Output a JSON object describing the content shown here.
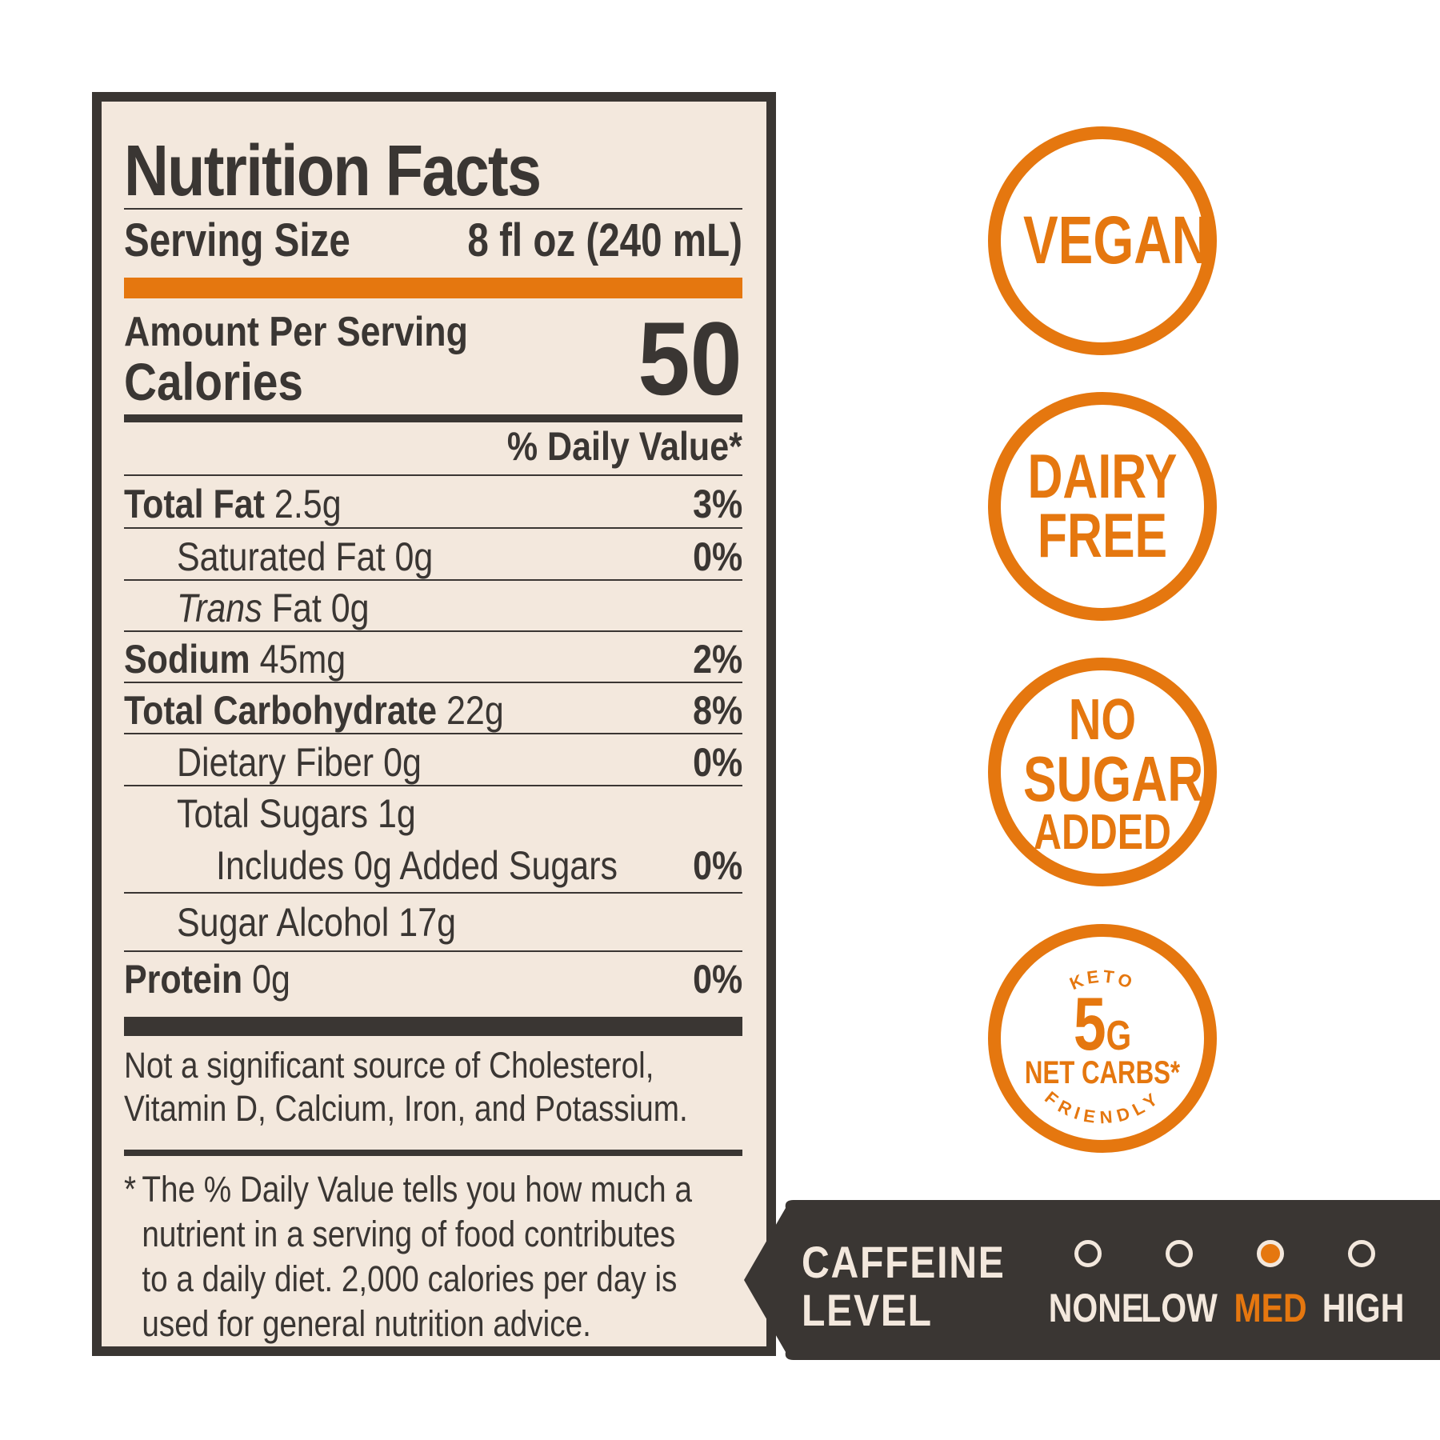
{
  "panel": {
    "title": "Nutrition Facts",
    "serving_size_label": "Serving Size",
    "serving_size_value": "8 fl oz (240 mL)",
    "amount_per_serving": "Amount Per Serving",
    "calories_label": "Calories",
    "calories_value": "50",
    "daily_value_header": "% Daily Value*",
    "rows": [
      {
        "name": "Total Fat",
        "amount": "2.5g",
        "dv": "3%"
      },
      {
        "name": "Saturated Fat",
        "amount": "0g",
        "dv": "0%"
      },
      {
        "name": "Trans",
        "amount": "Fat 0g",
        "dv": ""
      },
      {
        "name": "Sodium",
        "amount": "45mg",
        "dv": "2%"
      },
      {
        "name": "Total Carbohydrate",
        "amount": "22g",
        "dv": "8%"
      },
      {
        "name": "Dietary Fiber",
        "amount": "0g",
        "dv": "0%"
      },
      {
        "name": "Total Sugars",
        "amount": "1g",
        "dv": ""
      },
      {
        "name": "Includes 0g Added Sugars",
        "amount": "",
        "dv": "0%"
      },
      {
        "name": "Sugar Alcohol",
        "amount": "17g",
        "dv": ""
      },
      {
        "name": "Protein",
        "amount": "0g",
        "dv": "0%"
      }
    ],
    "note_line1": "Not a significant source of Cholesterol,",
    "note_line2": "Vitamin D, Calcium, Iron, and Potassium.",
    "footnote_star": "*",
    "footnote_lines": [
      "The % Daily Value tells you how much a",
      "nutrient in a serving of food contributes",
      "to a daily diet. 2,000 calories per day is",
      "used for general nutrition advice."
    ]
  },
  "badges": {
    "vegan": "VEGAN",
    "dairy_free_1": "DAIRY",
    "dairy_free_2": "FREE",
    "no_sugar_1": "NO",
    "no_sugar_2": "SUGAR",
    "no_sugar_3": "ADDED",
    "keto_top": "KETO",
    "keto_number": "5",
    "keto_unit": "G",
    "keto_mid": "NET CARBS*",
    "keto_bottom": "FRIENDLY"
  },
  "caffeine": {
    "title_1": "CAFFEINE",
    "title_2": "LEVEL",
    "levels": [
      "NONE",
      "LOW",
      "MED",
      "HIGH"
    ],
    "selected": "MED"
  },
  "colors": {
    "accent": "#e5770f",
    "dark": "#3a3633",
    "panel_bg": "#f3e8dd"
  }
}
